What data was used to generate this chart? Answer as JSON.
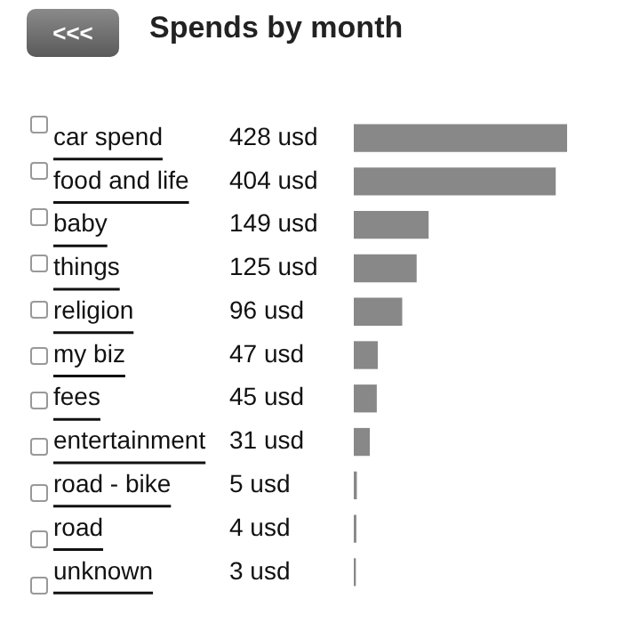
{
  "chart_data": {
    "type": "bar",
    "orientation": "horizontal",
    "title": "Spends by month",
    "annotations": [
      "<<<"
    ],
    "categories": [
      "car spend",
      "food and life",
      "baby",
      "things",
      "religion",
      "my biz",
      "fees",
      "entertainment",
      "road - bike",
      "road",
      "unknown"
    ],
    "values": [
      428,
      404,
      149,
      125,
      96,
      47,
      45,
      31,
      5,
      4,
      3
    ],
    "value_labels": [
      "428 usd",
      "404 usd",
      "149 usd",
      "125 usd",
      "96 usd",
      "47 usd",
      "45 usd",
      "31 usd",
      "5 usd",
      "4 usd",
      "3 usd"
    ],
    "color": "#888888",
    "grid": false,
    "legend": false
  }
}
